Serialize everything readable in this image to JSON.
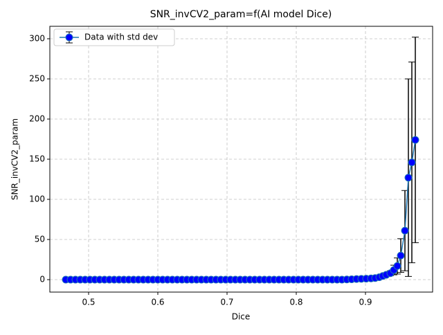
{
  "chart_data": {
    "type": "errorbar",
    "title": "SNR_invCV2_param=f(AI model Dice)",
    "x_label": "Dice",
    "y_label": "SNR_invCV2_param",
    "x": [
      0.467,
      0.474,
      0.481,
      0.488,
      0.495,
      0.502,
      0.509,
      0.516,
      0.523,
      0.53,
      0.537,
      0.544,
      0.551,
      0.558,
      0.565,
      0.572,
      0.579,
      0.586,
      0.593,
      0.6,
      0.607,
      0.614,
      0.621,
      0.628,
      0.635,
      0.642,
      0.649,
      0.656,
      0.663,
      0.67,
      0.677,
      0.684,
      0.691,
      0.698,
      0.705,
      0.712,
      0.719,
      0.726,
      0.733,
      0.74,
      0.747,
      0.754,
      0.761,
      0.768,
      0.775,
      0.782,
      0.789,
      0.796,
      0.803,
      0.81,
      0.817,
      0.824,
      0.831,
      0.838,
      0.845,
      0.852,
      0.859,
      0.866,
      0.873,
      0.88,
      0.887,
      0.894,
      0.901,
      0.908,
      0.914,
      0.92,
      0.925,
      0.93,
      0.936,
      0.941,
      0.946,
      0.951,
      0.957,
      0.962,
      0.967,
      0.972
    ],
    "series": [
      {
        "name": "Data with std dev",
        "color": "#1f77b4",
        "marker_color": "#0000ff",
        "values": [
          0,
          0,
          0,
          0,
          0,
          0,
          0,
          0,
          0,
          0,
          0,
          0,
          0,
          0,
          0,
          0,
          0,
          0,
          0,
          0,
          0,
          0,
          0,
          0,
          0,
          0,
          0,
          0,
          0,
          0,
          0,
          0,
          0,
          0,
          0,
          0,
          0,
          0,
          0,
          0,
          0,
          0,
          0,
          0,
          0,
          0,
          0,
          0,
          0,
          0,
          0,
          0,
          0,
          0,
          0,
          0,
          0,
          0,
          0.2,
          0.5,
          0.8,
          1,
          1.2,
          1.5,
          2,
          3,
          4.5,
          6,
          8,
          12,
          17,
          30,
          61,
          127,
          146,
          174
        ],
        "errors": [
          0,
          0,
          0,
          0,
          0,
          0,
          0,
          0,
          0,
          0,
          0,
          0,
          0,
          0,
          0,
          0,
          0,
          0,
          0,
          0,
          0,
          0,
          0,
          0,
          0,
          0,
          0,
          0,
          0,
          0,
          0,
          0,
          0,
          0,
          0,
          0,
          0,
          0,
          0,
          0,
          0,
          0,
          0,
          0,
          0,
          0,
          0,
          0,
          0,
          0,
          0,
          0,
          0,
          0,
          0,
          0,
          0,
          0,
          0.1,
          0.2,
          0.3,
          0.4,
          0.5,
          0.6,
          0.8,
          1,
          1.5,
          2,
          3,
          6,
          10,
          21,
          50,
          123,
          125,
          128
        ]
      }
    ],
    "xlim": [
      0.444,
      0.997
    ],
    "ylim": [
      -15.5,
      315.5
    ],
    "xticks": [
      0.5,
      0.6,
      0.7,
      0.8,
      0.9
    ],
    "yticks": [
      0,
      50,
      100,
      150,
      200,
      250,
      300
    ],
    "grid": true,
    "legend": "upper left"
  }
}
